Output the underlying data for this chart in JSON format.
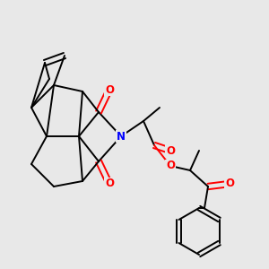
{
  "background_color": "#e8e8e8",
  "bond_width": 1.4,
  "atom_colors": {
    "O": "#ff0000",
    "N": "#0000ff"
  },
  "font_size": 8.5,
  "fig_width": 3.0,
  "fig_height": 3.0,
  "dpi": 100,
  "xlim": [
    0.0,
    3.0
  ],
  "ylim": [
    0.3,
    3.3
  ]
}
